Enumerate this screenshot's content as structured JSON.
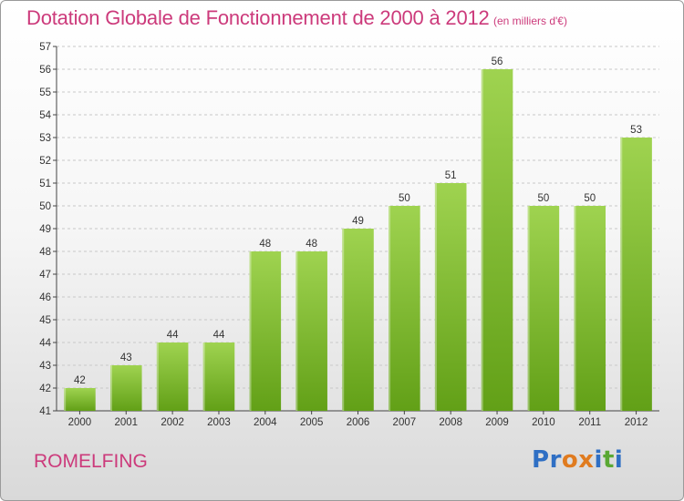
{
  "header": {
    "title": "Dotation Globale de Fonctionnement de 2000 à 2012",
    "subtitle": "(en milliers d'€)"
  },
  "footer": {
    "commune": "ROMELFING",
    "brand": "Proxiti",
    "brand_letters": [
      {
        "ch": "P",
        "color": "#2f6fc4"
      },
      {
        "ch": "r",
        "color": "#2f6fc4"
      },
      {
        "ch": "o",
        "color": "#e07b1f"
      },
      {
        "ch": "x",
        "color": "#e07b1f"
      },
      {
        "ch": "i",
        "color": "#2f6fc4"
      },
      {
        "ch": "t",
        "color": "#5aa834"
      },
      {
        "ch": "i",
        "color": "#2f6fc4"
      }
    ]
  },
  "colors": {
    "title": "#cc3a7b",
    "bar_top": "#9fd350",
    "bar_bottom": "#62a017",
    "grid": "#c8c8c8"
  },
  "chart_data": {
    "type": "bar",
    "title": "Dotation Globale de Fonctionnement de 2000 à 2012",
    "subtitle": "(en milliers d'€)",
    "xlabel": "",
    "ylabel": "",
    "ylim": [
      41,
      57
    ],
    "yticks": [
      41,
      42,
      43,
      44,
      45,
      46,
      47,
      48,
      49,
      50,
      51,
      52,
      53,
      54,
      55,
      56,
      57
    ],
    "grid": true,
    "categories": [
      "2000",
      "2001",
      "2002",
      "2003",
      "2004",
      "2005",
      "2006",
      "2007",
      "2008",
      "2009",
      "2010",
      "2011",
      "2012"
    ],
    "values": [
      42,
      43,
      44,
      44,
      48,
      48,
      49,
      50,
      51,
      56,
      50,
      50,
      53
    ],
    "data_labels": [
      "42",
      "43",
      "44",
      "44",
      "48",
      "48",
      "49",
      "50",
      "51",
      "56",
      "50",
      "50",
      "53"
    ]
  }
}
